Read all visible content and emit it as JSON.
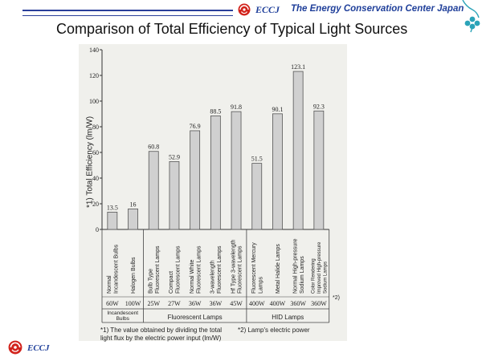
{
  "header": {
    "org_abbr": "ECCJ",
    "org_name": "The Energy Conservation Center Japan"
  },
  "footer": {
    "org_abbr": "ECCJ"
  },
  "colors": {
    "brand_blue": "#1f3f9a",
    "logo_red": "#d2231c",
    "bar_fill": "#d0d0d0",
    "bar_stroke": "#555555",
    "icon_teal": "#2aa3b8"
  },
  "chart_data": {
    "type": "bar",
    "title": "Comparison of Total Efficiency of Typical Light Sources",
    "ylabel": "*1) Total Efficiency (lm/W)",
    "ylim": [
      0,
      140
    ],
    "yticks": [
      0,
      20,
      40,
      60,
      80,
      100,
      120,
      140
    ],
    "categories": [
      {
        "lines": [
          "Normal",
          "Incandescent Bulbs"
        ],
        "power": "60W",
        "value": 13.5
      },
      {
        "lines": [
          "Halogen Bulbs"
        ],
        "power": "100W",
        "value": 16
      },
      {
        "lines": [
          "Bulb Type",
          "Fluorescent Lamps"
        ],
        "power": "25W",
        "value": 60.8
      },
      {
        "lines": [
          "Compact",
          "Fluorescent Lamps"
        ],
        "power": "27W",
        "value": 52.9
      },
      {
        "lines": [
          "Normal White",
          "Fluorescent Lamps"
        ],
        "power": "36W",
        "value": 76.9
      },
      {
        "lines": [
          "3-wavelength",
          "Fluorescent Lamps"
        ],
        "power": "36W",
        "value": 88.5
      },
      {
        "lines": [
          "Hf Type 3-wavelength",
          "Fluorescent Lamps"
        ],
        "power": "45W",
        "value": 91.8
      },
      {
        "lines": [
          "Fluorescent Mercury",
          "Lamps"
        ],
        "power": "400W",
        "value": 51.5
      },
      {
        "lines": [
          "Metal Halide Lamps"
        ],
        "power": "400W",
        "value": 90.1
      },
      {
        "lines": [
          "Normal High-pressure",
          "Sodium Lamps"
        ],
        "power": "360W",
        "value": 123.1
      },
      {
        "lines": [
          "Color Rendering",
          "Improved High-pressure",
          "Sodium Lamps"
        ],
        "power": "360W",
        "value": 92.3
      }
    ],
    "data_labels": [
      "13.5",
      "16",
      "60.8",
      "52.9",
      "76.9",
      "88.5",
      "91.8",
      "51.5",
      "90.1",
      "123.1",
      "92.3"
    ],
    "groups": [
      {
        "label": "Incandescent Bulbs",
        "start": 0,
        "end": 1
      },
      {
        "label": "Fluorescent Lamps",
        "start": 2,
        "end": 6
      },
      {
        "label": "HID Lamps",
        "start": 7,
        "end": 10
      }
    ],
    "power_note": "*2)",
    "notes": [
      "*1) The value obtained by dividing the total light flux by the electric power input (lm/W)",
      "*2) Lamp's electric power"
    ]
  }
}
